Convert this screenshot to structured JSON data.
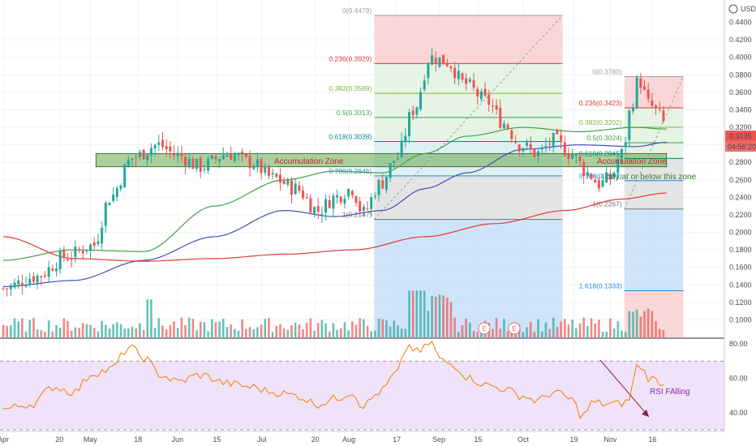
{
  "header": {
    "currency_label": "USD"
  },
  "price_axis": {
    "ticks": [
      "0.4400",
      "0.4200",
      "0.4000",
      "0.3800",
      "0.3600",
      "0.3400",
      "0.3200",
      "0.3000",
      "0.2800",
      "0.2600",
      "0.2400",
      "0.2200",
      "0.2000",
      "0.1800",
      "0.1600",
      "0.1400",
      "0.1200",
      "0.1000"
    ],
    "current_price": "0.3135",
    "countdown": "04:56:20"
  },
  "rsi_axis": {
    "ticks": [
      "80.00",
      "60.00",
      "40.00"
    ]
  },
  "time_axis": {
    "ticks": [
      "Apr",
      "20",
      "May",
      "18",
      "Jun",
      "15",
      "Jul",
      "20",
      "Aug",
      "17",
      "Sep",
      "15",
      "Oct",
      "19",
      "Nov",
      "16"
    ]
  },
  "fib_left": {
    "levels": [
      "0(0.4479)",
      "0.236(0.3929)",
      "0.382(0.3589)",
      "0.5(0.3313)",
      "0.618(0.3038)",
      "0.786(0.2646)",
      "1(0.2147)"
    ]
  },
  "fib_right": {
    "levels": [
      "0(0.3780)",
      "0.236(0.3423)",
      "0.382(0.3202)",
      "0.5(0.3024)",
      "0.618(0.2845)",
      "0.786(0.2591)",
      "1(0.2267)",
      "1.618(0.1333)"
    ]
  },
  "annotations": {
    "zone_label_1": "Accumulation Zone",
    "zone_label_2": "Accumulation Zone",
    "buy_note": "I buy at or below this zone",
    "rsi_note": "RSI FAlling",
    "event_markers": [
      "E",
      "E"
    ]
  },
  "colors": {
    "up": "#26a69a",
    "down": "#ef5350",
    "ma_green": "#43a047",
    "ma_blue": "#3f51b5",
    "ma_red": "#e53935",
    "rsi_line": "#f57c00",
    "rsi_band": "#e9d7f7",
    "zone_fill": "#6aa84f",
    "price_tag": "#ef5350"
  },
  "chart_data": {
    "type": "candlestick",
    "y_range_price": [
      0.08,
      0.46
    ],
    "y_range_rsi": [
      30,
      82
    ],
    "x_range_days": [
      0,
      250
    ],
    "x_ticks": [
      {
        "label": "Apr",
        "x": "Apr 1"
      },
      {
        "label": "20",
        "x": "Apr 20"
      },
      {
        "label": "May",
        "x": "May 1"
      },
      {
        "label": "18",
        "x": "May 18"
      },
      {
        "label": "Jun",
        "x": "Jun 1"
      },
      {
        "label": "15",
        "x": "Jun 15"
      },
      {
        "label": "Jul",
        "x": "Jul 1"
      },
      {
        "label": "20",
        "x": "Jul 20"
      },
      {
        "label": "Aug",
        "x": "Aug 1"
      },
      {
        "label": "17",
        "x": "Aug 17"
      },
      {
        "label": "Sep",
        "x": "Sep 1"
      },
      {
        "label": "15",
        "x": "Sep 15"
      },
      {
        "label": "Oct",
        "x": "Oct 1"
      },
      {
        "label": "19",
        "x": "Oct 19"
      },
      {
        "label": "Nov",
        "x": "Nov 1"
      },
      {
        "label": "16",
        "x": "Nov 16"
      }
    ],
    "close_anchors": [
      [
        0,
        0.136
      ],
      [
        12,
        0.15
      ],
      [
        22,
        0.172
      ],
      [
        32,
        0.185
      ],
      [
        38,
        0.24
      ],
      [
        46,
        0.285
      ],
      [
        55,
        0.3
      ],
      [
        62,
        0.288
      ],
      [
        70,
        0.275
      ],
      [
        80,
        0.29
      ],
      [
        88,
        0.28
      ],
      [
        96,
        0.262
      ],
      [
        104,
        0.25
      ],
      [
        112,
        0.225
      ],
      [
        118,
        0.24
      ],
      [
        124,
        0.25
      ],
      [
        128,
        0.222
      ],
      [
        134,
        0.255
      ],
      [
        140,
        0.285
      ],
      [
        146,
        0.34
      ],
      [
        152,
        0.4
      ],
      [
        158,
        0.395
      ],
      [
        164,
        0.37
      ],
      [
        172,
        0.35
      ],
      [
        178,
        0.325
      ],
      [
        184,
        0.3
      ],
      [
        190,
        0.29
      ],
      [
        196,
        0.305
      ],
      [
        202,
        0.29
      ],
      [
        208,
        0.268
      ],
      [
        212,
        0.255
      ],
      [
        216,
        0.262
      ],
      [
        220,
        0.29
      ],
      [
        224,
        0.35
      ],
      [
        226,
        0.375
      ],
      [
        230,
        0.345
      ],
      [
        234,
        0.333
      ],
      [
        236,
        0.3135
      ]
    ],
    "ma_green_anchors": [
      [
        0,
        0.168
      ],
      [
        25,
        0.18
      ],
      [
        50,
        0.178
      ],
      [
        75,
        0.23
      ],
      [
        100,
        0.26
      ],
      [
        118,
        0.27
      ],
      [
        135,
        0.268
      ],
      [
        150,
        0.29
      ],
      [
        165,
        0.31
      ],
      [
        185,
        0.32
      ],
      [
        205,
        0.315
      ],
      [
        225,
        0.32
      ],
      [
        236,
        0.318
      ]
    ],
    "ma_blue_anchors": [
      [
        0,
        0.138
      ],
      [
        25,
        0.145
      ],
      [
        50,
        0.168
      ],
      [
        75,
        0.195
      ],
      [
        100,
        0.225
      ],
      [
        118,
        0.218
      ],
      [
        135,
        0.225
      ],
      [
        150,
        0.25
      ],
      [
        165,
        0.268
      ],
      [
        185,
        0.295
      ],
      [
        205,
        0.3
      ],
      [
        225,
        0.298
      ],
      [
        236,
        0.303
      ]
    ],
    "ma_red_anchors": [
      [
        0,
        0.195
      ],
      [
        25,
        0.17
      ],
      [
        50,
        0.167
      ],
      [
        75,
        0.17
      ],
      [
        100,
        0.175
      ],
      [
        125,
        0.18
      ],
      [
        150,
        0.195
      ],
      [
        175,
        0.21
      ],
      [
        200,
        0.225
      ],
      [
        220,
        0.238
      ],
      [
        236,
        0.245
      ]
    ],
    "fib_left_values": [
      0.4479,
      0.3929,
      0.3589,
      0.3313,
      0.3038,
      0.2646,
      0.2147
    ],
    "fib_right_values": [
      0.378,
      0.3423,
      0.3202,
      0.3024,
      0.2845,
      0.2591,
      0.2267,
      0.1333
    ],
    "fib_left_days": [
      132,
      199
    ],
    "fib_right_days": [
      221,
      242
    ],
    "accumulation_zone": [
      0.275,
      0.29
    ],
    "rsi_band": [
      30,
      70
    ],
    "rsi_anchors": [
      [
        0,
        42
      ],
      [
        10,
        45
      ],
      [
        18,
        55
      ],
      [
        25,
        52
      ],
      [
        32,
        63
      ],
      [
        38,
        65
      ],
      [
        45,
        78
      ],
      [
        50,
        72
      ],
      [
        56,
        62
      ],
      [
        62,
        58
      ],
      [
        70,
        62
      ],
      [
        80,
        57
      ],
      [
        88,
        55
      ],
      [
        96,
        52
      ],
      [
        104,
        50
      ],
      [
        112,
        45
      ],
      [
        118,
        48
      ],
      [
        124,
        52
      ],
      [
        128,
        44
      ],
      [
        134,
        52
      ],
      [
        140,
        63
      ],
      [
        144,
        79
      ],
      [
        148,
        75
      ],
      [
        152,
        81
      ],
      [
        156,
        70
      ],
      [
        160,
        68
      ],
      [
        166,
        60
      ],
      [
        172,
        56
      ],
      [
        178,
        54
      ],
      [
        184,
        50
      ],
      [
        190,
        47
      ],
      [
        196,
        52
      ],
      [
        202,
        48
      ],
      [
        206,
        38
      ],
      [
        210,
        46
      ],
      [
        214,
        45
      ],
      [
        218,
        45
      ],
      [
        222,
        46
      ],
      [
        226,
        68
      ],
      [
        230,
        60
      ],
      [
        234,
        58
      ],
      [
        236,
        52
      ]
    ]
  }
}
